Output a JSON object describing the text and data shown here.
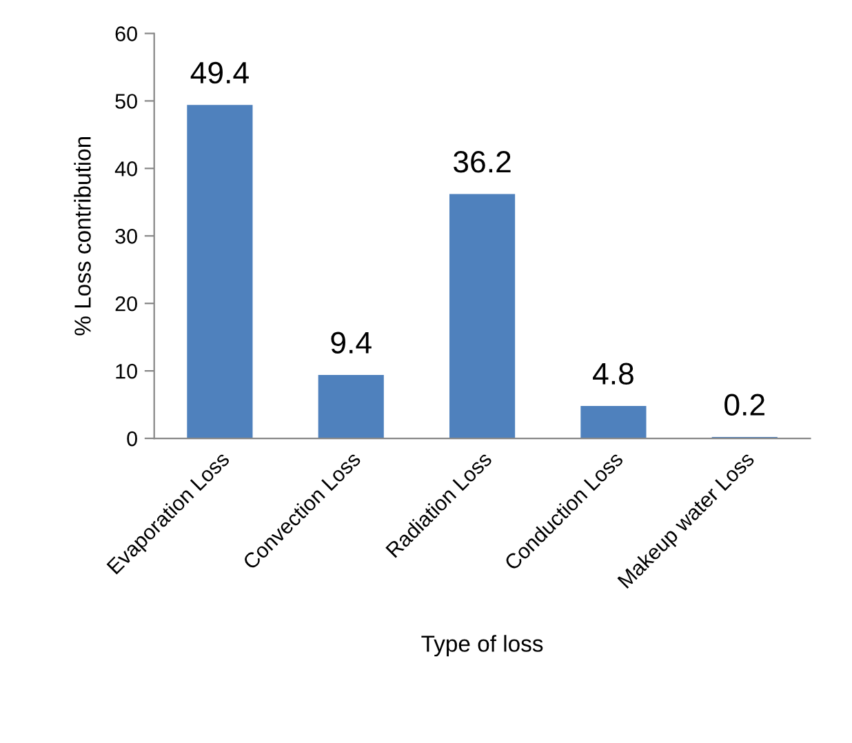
{
  "chart_data": {
    "type": "bar",
    "xlabel": "Type of loss",
    "ylabel": "% Loss contribution",
    "categories": [
      "Evaporation Loss",
      "Convection Loss",
      "Radiation Loss",
      "Conduction Loss",
      "Makeup water Loss"
    ],
    "values": [
      49.4,
      9.4,
      36.2,
      4.8,
      0.2
    ],
    "color": "#4f81bd",
    "ylim": [
      0,
      60
    ],
    "yticks": [
      0,
      10,
      20,
      30,
      40,
      50,
      60
    ],
    "grid": false,
    "data_labels": true
  }
}
